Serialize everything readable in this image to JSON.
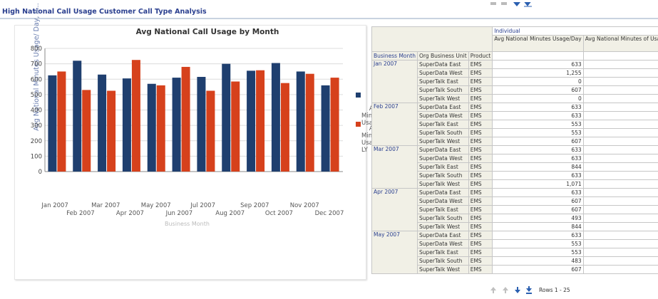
{
  "page": {
    "title": "High National Call Usage Customer Call Type Analysis"
  },
  "chart": {
    "title": "Avg National Call Usage by Month"
  },
  "chart_data": {
    "type": "bar",
    "title": "Avg National Call Usage by Month",
    "ylabel": "Avg National Minutes Usage/ Day, A...",
    "xlabel": "Business Month",
    "ylim": [
      0,
      800
    ],
    "yticks": [
      "0",
      "100",
      "200",
      "300",
      "400",
      "500",
      "600",
      "700",
      "800"
    ],
    "ytick_labels": [
      "0",
      "100",
      "200",
      "300",
      "400",
      "500",
      "600",
      "700",
      "800"
    ],
    "categories": [
      "Jan 2007",
      "Feb 2007",
      "Mar 2007",
      "Apr 2007",
      "May 2007",
      "Jun 2007",
      "Jul 2007",
      "Aug 2007",
      "Sep 2007",
      "Oct 2007",
      "Nov 2007",
      "Dec 2007"
    ],
    "series": [
      {
        "name": "Avg Minutes Usage",
        "color": "#1f3f6f",
        "values": [
          625,
          720,
          630,
          605,
          570,
          610,
          615,
          700,
          655,
          705,
          650,
          560
        ]
      },
      {
        "name": "Avg Minutes Usage LY",
        "color": "#d6411c",
        "values": [
          650,
          530,
          525,
          725,
          560,
          680,
          525,
          585,
          658,
          575,
          635,
          610
        ]
      }
    ],
    "legend_position": "right"
  },
  "legend": {
    "item1": "Avg\nMinu\nUsag",
    "item2": "Avg\nMinu\nUsag\nLY"
  },
  "table": {
    "header": {
      "group": "Individual",
      "col1": "Avg National Minutes Usage/Day",
      "col2": "Avg National Minutes of Usage/Day LY",
      "business_month": "Business Month",
      "org_unit": "Org Business Unit",
      "product": "Product"
    },
    "groups": [
      {
        "month": "Jan 2007",
        "rows": [
          {
            "unit": "SuperData East",
            "product": "EMS",
            "value": "633"
          },
          {
            "unit": "SuperData West",
            "product": "EMS",
            "value": "1,255"
          },
          {
            "unit": "SuperTalk East",
            "product": "EMS",
            "value": "0"
          },
          {
            "unit": "SuperTalk South",
            "product": "EMS",
            "value": "607"
          },
          {
            "unit": "SuperTalk West",
            "product": "EMS",
            "value": "0"
          }
        ]
      },
      {
        "month": "Feb 2007",
        "rows": [
          {
            "unit": "SuperData East",
            "product": "EMS",
            "value": "633"
          },
          {
            "unit": "SuperData West",
            "product": "EMS",
            "value": "633"
          },
          {
            "unit": "SuperTalk East",
            "product": "EMS",
            "value": "553"
          },
          {
            "unit": "SuperTalk South",
            "product": "EMS",
            "value": "553"
          },
          {
            "unit": "SuperTalk West",
            "product": "EMS",
            "value": "607"
          }
        ]
      },
      {
        "month": "Mar 2007",
        "rows": [
          {
            "unit": "SuperData East",
            "product": "EMS",
            "value": "633"
          },
          {
            "unit": "SuperData West",
            "product": "EMS",
            "value": "633"
          },
          {
            "unit": "SuperTalk East",
            "product": "EMS",
            "value": "844"
          },
          {
            "unit": "SuperTalk South",
            "product": "EMS",
            "value": "633"
          },
          {
            "unit": "SuperTalk West",
            "product": "EMS",
            "value": "1,071"
          }
        ]
      },
      {
        "month": "Apr 2007",
        "rows": [
          {
            "unit": "SuperData East",
            "product": "EMS",
            "value": "633"
          },
          {
            "unit": "SuperData West",
            "product": "EMS",
            "value": "607"
          },
          {
            "unit": "SuperTalk East",
            "product": "EMS",
            "value": "607"
          },
          {
            "unit": "SuperTalk South",
            "product": "EMS",
            "value": "493"
          },
          {
            "unit": "SuperTalk West",
            "product": "EMS",
            "value": "844"
          }
        ]
      },
      {
        "month": "May 2007",
        "rows": [
          {
            "unit": "SuperData East",
            "product": "EMS",
            "value": "633"
          },
          {
            "unit": "SuperData West",
            "product": "EMS",
            "value": "553"
          },
          {
            "unit": "SuperTalk East",
            "product": "EMS",
            "value": "553"
          },
          {
            "unit": "SuperTalk South",
            "product": "EMS",
            "value": "483"
          },
          {
            "unit": "SuperTalk West",
            "product": "EMS",
            "value": "607"
          }
        ]
      }
    ]
  },
  "pager": {
    "rows_label": "Rows 1 - 25"
  },
  "icons": [
    "arrow-up-icon",
    "arrow-down-icon",
    "first-page-icon",
    "prev-page-icon",
    "next-page-icon",
    "last-page-icon"
  ]
}
